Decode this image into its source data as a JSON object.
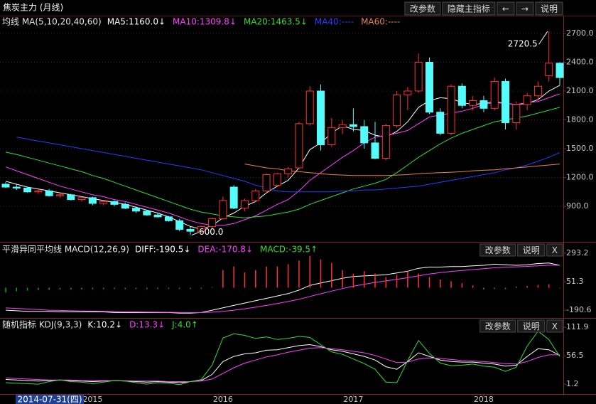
{
  "header": {
    "title": "焦炭主力 (月线)",
    "buttons": [
      "改参数",
      "隐藏主指标",
      "←",
      "→",
      "说明"
    ]
  },
  "chart_data": [
    {
      "type": "candlestick",
      "title": "均线 MA(5,10,20,40,60)",
      "up_color": "#ff3232",
      "down_color": "#54fcfc",
      "open": [
        1130,
        1100,
        1090,
        1050,
        1060,
        1010,
        1020,
        970,
        990,
        930,
        950,
        920,
        880,
        850,
        810,
        790,
        750,
        660,
        640,
        690,
        770,
        1100,
        880,
        960,
        1060,
        1120,
        1240,
        1300,
        1760,
        2100,
        1540,
        1720,
        1750,
        1730,
        1560,
        1400,
        1740,
        2060,
        2100,
        2400,
        1880,
        1660,
        2150,
        1950,
        2000,
        1920,
        2200,
        1770,
        1960,
        2050,
        2260,
        2390
      ],
      "high": [
        1150,
        1130,
        1100,
        1080,
        1080,
        1040,
        1030,
        1000,
        1000,
        960,
        960,
        940,
        900,
        860,
        830,
        800,
        770,
        690,
        700,
        780,
        1000,
        1120,
        980,
        1080,
        1240,
        1250,
        1310,
        1780,
        2150,
        2170,
        1820,
        1800,
        1920,
        1800,
        1780,
        1760,
        2100,
        2140,
        2490,
        2450,
        1920,
        2170,
        2180,
        2050,
        2050,
        2240,
        2230,
        1990,
        2080,
        2200,
        2720.5,
        2400
      ],
      "low": [
        1090,
        1070,
        1040,
        1030,
        1000,
        990,
        960,
        950,
        910,
        910,
        900,
        870,
        830,
        800,
        780,
        740,
        640,
        600,
        620,
        670,
        760,
        870,
        850,
        940,
        1050,
        1100,
        1200,
        1290,
        1740,
        1480,
        1520,
        1650,
        1680,
        1500,
        1390,
        1380,
        1720,
        1900,
        2080,
        1860,
        1640,
        1640,
        1920,
        1900,
        1880,
        1900,
        1700,
        1700,
        1900,
        2000,
        2200,
        2160
      ],
      "close": [
        1100,
        1090,
        1050,
        1060,
        1010,
        1020,
        970,
        990,
        930,
        950,
        920,
        880,
        850,
        810,
        790,
        750,
        660,
        640,
        690,
        770,
        960,
        880,
        960,
        1060,
        1230,
        1240,
        1290,
        1760,
        2100,
        1540,
        1720,
        1750,
        1730,
        1560,
        1400,
        1740,
        2060,
        2100,
        2400,
        1880,
        1660,
        2150,
        1950,
        2000,
        1920,
        2200,
        1770,
        1960,
        2050,
        2150,
        2390,
        2240
      ],
      "extreme_labels": {
        "high": "2720.5",
        "low": "600.0"
      },
      "series": [
        {
          "name": "MA5:1160.0↓",
          "color": "#ffffff",
          "mark": "line",
          "values": [
            1160,
            1130,
            1100,
            1080,
            1060,
            1040,
            1020,
            1000,
            980,
            960,
            940,
            920,
            890,
            860,
            830,
            790,
            740,
            690,
            660,
            700,
            780,
            830,
            900,
            950,
            1040,
            1110,
            1170,
            1300,
            1490,
            1560,
            1660,
            1740,
            1700,
            1690,
            1640,
            1620,
            1680,
            1780,
            1930,
            2000,
            2030,
            2020,
            1980,
            1960,
            1970,
            1990,
            1970,
            1960,
            1970,
            2010,
            2100,
            2160
          ]
        },
        {
          "name": "MA10:1309.8↓",
          "color": "#ff40ff",
          "mark": "line",
          "values": [
            1309.8,
            1270,
            1230,
            1190,
            1150,
            1110,
            1080,
            1050,
            1020,
            1000,
            970,
            950,
            920,
            890,
            860,
            830,
            790,
            750,
            720,
            700,
            700,
            720,
            760,
            800,
            860,
            920,
            970,
            1060,
            1170,
            1250,
            1330,
            1410,
            1480,
            1560,
            1620,
            1640,
            1660,
            1690,
            1760,
            1830,
            1850,
            1870,
            1890,
            1920,
            1960,
            1980,
            1970,
            1960,
            1980,
            1990,
            2030,
            2070
          ]
        },
        {
          "name": "MA20:1463.5↓",
          "color": "#33dd33",
          "mark": "line",
          "values": [
            1463.5,
            1440,
            1410,
            1380,
            1350,
            1320,
            1290,
            1260,
            1220,
            1190,
            1150,
            1110,
            1070,
            1030,
            990,
            950,
            910,
            870,
            840,
            820,
            800,
            790,
            780,
            790,
            800,
            820,
            840,
            870,
            920,
            960,
            1000,
            1040,
            1080,
            1110,
            1140,
            1180,
            1250,
            1330,
            1410,
            1480,
            1550,
            1610,
            1660,
            1700,
            1740,
            1780,
            1800,
            1820,
            1840,
            1870,
            1900,
            1930
          ]
        },
        {
          "name": "MA40:----",
          "color": "#2a3cff",
          "mark": "line",
          "values": [
            null,
            1620,
            1600,
            1580,
            1560,
            1540,
            1520,
            1500,
            1480,
            1460,
            1440,
            1420,
            1400,
            1380,
            1360,
            1340,
            1320,
            1300,
            1280,
            1250,
            1220,
            1190,
            1160,
            1120,
            1090,
            1060,
            1050,
            1050,
            1050,
            1050,
            1050,
            1060,
            1060,
            1070,
            1070,
            1080,
            1090,
            1100,
            1110,
            1130,
            1150,
            1170,
            1190,
            1210,
            1230,
            1250,
            1280,
            1300,
            1330,
            1370,
            1410,
            1460
          ]
        },
        {
          "name": "MA60:----",
          "color": "#e8844a",
          "mark": "line",
          "values": [
            null,
            null,
            null,
            null,
            null,
            null,
            null,
            null,
            null,
            null,
            null,
            null,
            null,
            null,
            null,
            null,
            null,
            null,
            null,
            null,
            null,
            null,
            1340,
            1320,
            1300,
            1290,
            1270,
            1260,
            1250,
            1240,
            1230,
            1225,
            1220,
            1220,
            1220,
            1220,
            1225,
            1230,
            1240,
            1245,
            1250,
            1255,
            1260,
            1270,
            1275,
            1280,
            1290,
            1300,
            1310,
            1320,
            1330,
            1340
          ]
        }
      ],
      "ylim": [
        530,
        2870
      ],
      "yticks": [
        {
          "value": 2700,
          "label": "2700.0"
        },
        {
          "value": 2400,
          "label": "2400.0"
        },
        {
          "value": 2100,
          "label": "2100.0"
        },
        {
          "value": 1800,
          "label": "1800.0"
        },
        {
          "value": 1500,
          "label": "1500.0"
        },
        {
          "value": 1200,
          "label": "1200.0"
        },
        {
          "value": 900,
          "label": "900.0"
        }
      ],
      "xticks": [
        {
          "value": 8,
          "label": "2015"
        },
        {
          "value": 20,
          "label": "2016"
        },
        {
          "value": 32,
          "label": "2017"
        },
        {
          "value": 44,
          "label": "2018"
        }
      ],
      "crosshair_label": "2014-07-31(四)",
      "grid": true
    },
    {
      "type": "line",
      "title": "平滑异同平均线 MACD(12,26,9)",
      "buttons": [
        "改参数",
        "说明",
        "X"
      ],
      "up_color": "#ff3232",
      "down_color": "#00b000",
      "series": [
        {
          "name": "DIFF:-190.5↓",
          "color": "#ffffff",
          "mark": "line",
          "values": [
            -190.5,
            -195,
            -200,
            -200,
            -200,
            -205,
            -205,
            -205,
            -205,
            -205,
            -210,
            -210,
            -210,
            -210,
            -210,
            -210,
            -215,
            -215,
            -210,
            -190,
            -170,
            -150,
            -130,
            -110,
            -90,
            -70,
            -50,
            -20,
            20,
            40,
            60,
            80,
            95,
            100,
            105,
            110,
            125,
            140,
            165,
            175,
            175,
            180,
            180,
            185,
            190,
            200,
            195,
            190,
            195,
            205,
            210,
            190
          ]
        },
        {
          "name": "DEA:-170.8↓",
          "color": "#ff40ff",
          "mark": "line",
          "values": [
            -170.8,
            -175,
            -180,
            -185,
            -190,
            -192,
            -195,
            -197,
            -199,
            -200,
            -202,
            -204,
            -205,
            -206,
            -207,
            -208,
            -210,
            -211,
            -211,
            -207,
            -200,
            -190,
            -178,
            -165,
            -150,
            -134,
            -117,
            -98,
            -74,
            -51,
            -29,
            -7,
            13,
            30,
            45,
            58,
            71,
            85,
            101,
            116,
            128,
            138,
            147,
            154,
            161,
            169,
            174,
            177,
            181,
            186,
            191,
            191
          ]
        },
        {
          "name": "MACD:-39.5↑",
          "color": "#33dd33",
          "mark": "bar",
          "values": [
            -39.5,
            -30,
            -25,
            -20,
            -18,
            -16,
            -15,
            -14,
            -13,
            -12,
            -11,
            -12,
            -12,
            -12,
            -11,
            -10,
            -10,
            -10,
            -8,
            5,
            150,
            180,
            130,
            150,
            180,
            180,
            200,
            230,
            270,
            240,
            210,
            150,
            120,
            140,
            120,
            90,
            110,
            140,
            120,
            90,
            70,
            55,
            40,
            20,
            -15,
            -10,
            -12,
            10,
            15,
            25,
            30,
            -5
          ]
        }
      ],
      "ylim": [
        -256,
        377
      ],
      "yticks": [
        293.2,
        51.3,
        -190.6
      ],
      "grid": false
    },
    {
      "type": "line",
      "title": "随机指标 KDJ(9,3,3)",
      "buttons": [
        "改参数",
        "说明",
        "X"
      ],
      "series": [
        {
          "name": "K:10.2↓",
          "color": "#ffffff",
          "mark": "line",
          "values": [
            10.2,
            9,
            8,
            7,
            8,
            9,
            8,
            7,
            6,
            7,
            8,
            7,
            6,
            5,
            6,
            5,
            4,
            6,
            8,
            20,
            45,
            55,
            60,
            62,
            67,
            68,
            72,
            76,
            78,
            74,
            68,
            65,
            60,
            55,
            48,
            35,
            30,
            45,
            62,
            55,
            48,
            45,
            44,
            44,
            42,
            40,
            36,
            38,
            55,
            70,
            68,
            57
          ]
        },
        {
          "name": "D:13.3↓",
          "color": "#ff40ff",
          "mark": "line",
          "values": [
            13.3,
            12,
            11,
            10,
            9,
            9,
            9,
            8,
            8,
            8,
            8,
            8,
            7,
            7,
            7,
            6,
            6,
            6,
            7,
            11,
            22,
            33,
            42,
            48,
            54,
            58,
            63,
            67,
            71,
            72,
            70,
            68,
            65,
            62,
            57,
            50,
            43,
            44,
            50,
            52,
            51,
            49,
            47,
            46,
            45,
            43,
            41,
            40,
            45,
            53,
            58,
            58
          ]
        },
        {
          "name": "J:4.0↑",
          "color": "#33dd33",
          "mark": "line",
          "values": [
            4,
            3,
            2,
            1,
            6,
            9,
            6,
            5,
            2,
            5,
            8,
            7,
            4,
            1,
            4,
            3,
            0,
            6,
            10,
            38,
            91,
            99,
            96,
            90,
            93,
            88,
            90,
            94,
            92,
            78,
            64,
            59,
            50,
            41,
            30,
            5,
            4,
            47,
            86,
            61,
            42,
            37,
            38,
            40,
            36,
            34,
            26,
            34,
            75,
            104,
            88,
            55
          ]
        }
      ],
      "ylim": [
        -18.2,
        127.1
      ],
      "yticks": [
        111.9,
        56.5,
        1.2
      ],
      "grid": false
    }
  ]
}
